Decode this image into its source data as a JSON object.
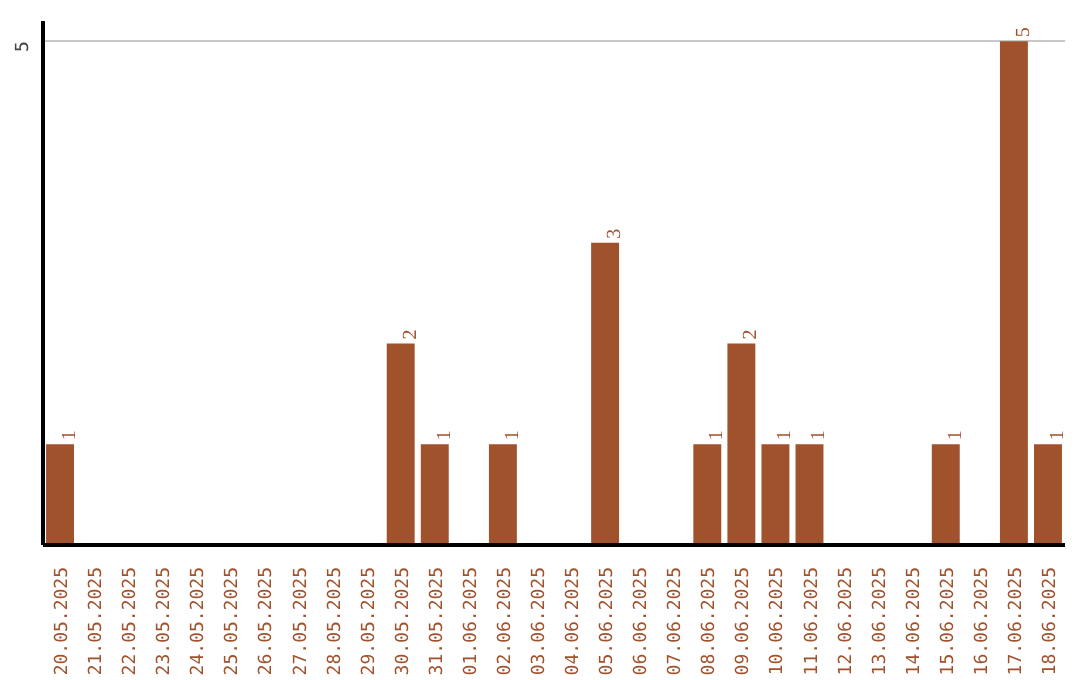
{
  "chart_data": {
    "type": "bar",
    "categories": [
      "20.05.2025",
      "21.05.2025",
      "22.05.2025",
      "23.05.2025",
      "24.05.2025",
      "25.05.2025",
      "26.05.2025",
      "27.05.2025",
      "28.05.2025",
      "29.05.2025",
      "30.05.2025",
      "31.05.2025",
      "01.06.2025",
      "02.06.2025",
      "03.06.2025",
      "04.06.2025",
      "05.06.2025",
      "06.06.2025",
      "07.06.2025",
      "08.06.2025",
      "09.06.2025",
      "10.06.2025",
      "11.06.2025",
      "12.06.2025",
      "13.06.2025",
      "14.06.2025",
      "15.06.2025",
      "16.06.2025",
      "17.06.2025",
      "18.06.2025"
    ],
    "values": [
      1,
      0,
      0,
      0,
      0,
      0,
      0,
      0,
      0,
      0,
      2,
      1,
      0,
      1,
      0,
      0,
      3,
      0,
      0,
      1,
      2,
      1,
      1,
      0,
      0,
      0,
      1,
      0,
      5,
      1
    ],
    "value_labels": [
      "1",
      null,
      null,
      null,
      null,
      null,
      null,
      null,
      null,
      null,
      "2",
      "1",
      null,
      "1",
      null,
      null,
      "3",
      null,
      null,
      "1",
      "2",
      "1",
      "1",
      null,
      null,
      null,
      "1",
      null,
      "5",
      "1"
    ],
    "color": "#a0522d",
    "ylim": [
      0,
      5.2
    ],
    "yticks": [
      5
    ],
    "grid": "y"
  }
}
